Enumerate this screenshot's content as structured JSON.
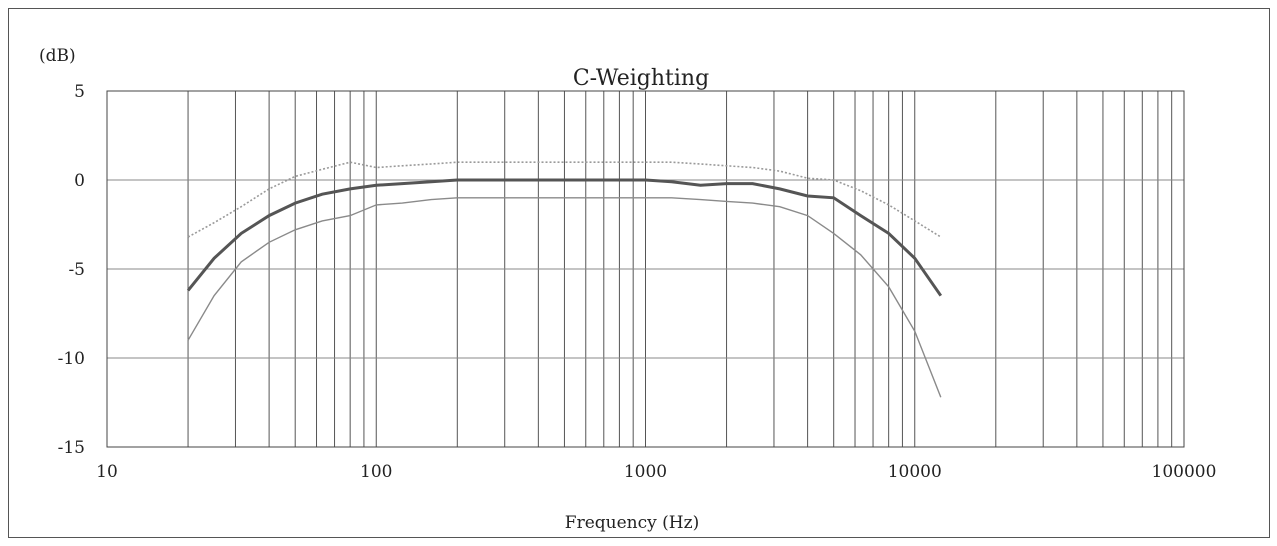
{
  "chart_data": {
    "type": "line",
    "title": "C-Weighting",
    "ylabel": "(dB)",
    "xlabel": "Frequency (Hz)",
    "x_scale": "log",
    "xlim": [
      10,
      100000
    ],
    "ylim": [
      -15,
      5
    ],
    "x_ticks": [
      10,
      100,
      1000,
      10000,
      100000
    ],
    "x_tick_labels": [
      "10",
      "100",
      "1000",
      "10000",
      "100000"
    ],
    "y_ticks": [
      5,
      0,
      -5,
      -10,
      -15
    ],
    "y_tick_labels": [
      "5",
      "0",
      "-5",
      "-10",
      "-15"
    ],
    "grid": true,
    "legend": "none",
    "series": [
      {
        "x": [
          20,
          25,
          31.5,
          40,
          50,
          63,
          80,
          100,
          125,
          160,
          200,
          250,
          315,
          400,
          500,
          630,
          800,
          1000,
          1250,
          1600,
          2000,
          2500,
          3150,
          4000,
          5000,
          6300,
          8000,
          10000,
          12500
        ],
        "values": [
          -6.2,
          -4.4,
          -3.0,
          -2.0,
          -1.3,
          -0.8,
          -0.5,
          -0.3,
          -0.2,
          -0.1,
          0,
          0,
          0,
          0,
          0,
          0,
          0,
          0,
          -0.1,
          -0.3,
          -0.2,
          -0.2,
          -0.5,
          -0.9,
          -1.0,
          -2.0,
          -3.0,
          -4.4,
          -6.5
        ],
        "color": "#555555",
        "style": "solid"
      },
      {
        "x": [
          20,
          25,
          31.5,
          40,
          50,
          63,
          80,
          100,
          125,
          160,
          200,
          250,
          315,
          400,
          500,
          630,
          800,
          1000,
          1250,
          1600,
          2000,
          2500,
          3150,
          4000,
          5000,
          6300,
          8000,
          10000,
          12500
        ],
        "values": [
          -3.2,
          -2.4,
          -1.5,
          -0.5,
          0.2,
          0.6,
          1.0,
          0.7,
          0.8,
          0.9,
          1.0,
          1.0,
          1.0,
          1.0,
          1.0,
          1.0,
          1.0,
          1.0,
          1.0,
          0.9,
          0.8,
          0.7,
          0.5,
          0.1,
          0,
          -0.6,
          -1.4,
          -2.3,
          -3.2
        ],
        "color": "#9a9a9a",
        "style": "dotted"
      },
      {
        "x": [
          20,
          25,
          31.5,
          40,
          50,
          63,
          80,
          100,
          125,
          160,
          200,
          250,
          315,
          400,
          500,
          630,
          800,
          1000,
          1250,
          1600,
          2000,
          2500,
          3150,
          4000,
          5000,
          6300,
          8000,
          10000,
          12500
        ],
        "values": [
          -9.0,
          -6.5,
          -4.6,
          -3.5,
          -2.8,
          -2.3,
          -2.0,
          -1.4,
          -1.3,
          -1.1,
          -1.0,
          -1.0,
          -1.0,
          -1.0,
          -1.0,
          -1.0,
          -1.0,
          -1.0,
          -1.0,
          -1.1,
          -1.2,
          -1.3,
          -1.5,
          -2.0,
          -3.0,
          -4.2,
          -6.0,
          -8.5,
          -12.2
        ],
        "color": "#8a8a8a",
        "style": "solid-thin"
      }
    ]
  }
}
